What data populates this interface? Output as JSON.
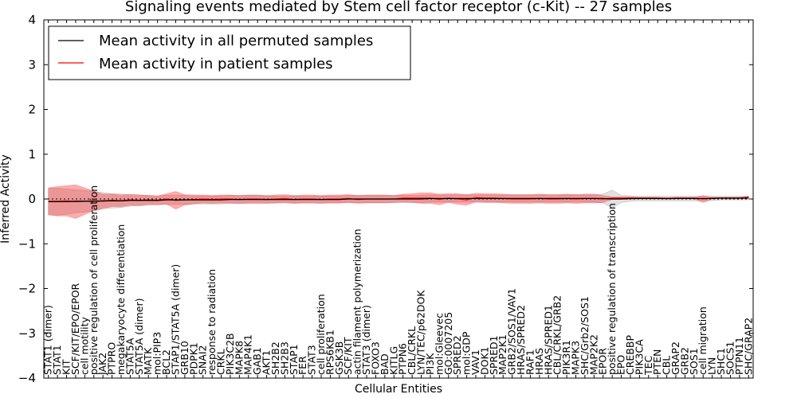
{
  "chart_data": {
    "type": "line",
    "title": "Signaling events mediated by Stem cell factor receptor (c-Kit) -- 27 samples",
    "xlabel": "Cellular Entities",
    "ylabel": "Inferred Activity",
    "ylim": [
      -4,
      4
    ],
    "yticks": [
      -4,
      -3,
      -2,
      -1,
      0,
      1,
      2,
      3,
      4
    ],
    "ytick_labels": [
      "−4",
      "−3",
      "−2",
      "−1",
      "0",
      "1",
      "2",
      "3",
      "4"
    ],
    "grid": false,
    "legend_position": "top-left",
    "categories": [
      "STAT1 (dimer)",
      "STAT1",
      "KIT",
      "SCF/KIT/EPO/EPOR",
      "cell motility",
      "positive regulation of cell proliferation",
      "JAK2",
      "PTPRO",
      "megakaryocyte differentiation",
      "STAT5A",
      "STAT5A (dimer)",
      "MATK",
      "mol:PIP3",
      "BCL2",
      "STAP1/STAT5A (dimer)",
      "GRB10",
      "PDPK1",
      "SNAI2",
      "response to radiation",
      "CRKL",
      "PIK3C2B",
      "MAPK8",
      "MAP4K1",
      "GAB1",
      "AKT1",
      "SH2B2",
      "SH2B3",
      "STAP1",
      "FER",
      "STAT3",
      "cell proliferation",
      "RPS6KB1",
      "GSK3B",
      "SCF/KIT",
      "actin filament polymerization",
      "STAT3 (dimer)",
      "FOXO3",
      "BAD",
      "KITLG",
      "PTPN6",
      "CBL/CRKL",
      "LYN/TEC/p62DOK",
      "PI3K",
      "mol:Gleevec",
      "GO:0007205",
      "SPRED2",
      "mol:GDP",
      "VAV1",
      "DOK1",
      "SPRED1",
      "MAP2K1",
      "GRB2/SOS1/VAV1",
      "HRAS/SPRED2",
      "RAF1",
      "HRAS",
      "HRAS/SPRED1",
      "CBL/CRKL/GRB2",
      "PIK3R1",
      "MAPK3",
      "SHC/Grb2/SOS1",
      "MAP2K2",
      "EPOR",
      "positive regulation of transcription",
      "EPO",
      "CREBBP",
      "PIK3CA",
      "TEC",
      "PTEN",
      "CBL",
      "GRAP2",
      "GRB2",
      "SOS1",
      "cell migration",
      "LYN",
      "SHC1",
      "SOCS1",
      "PTPN11",
      "SHC/GRAP2"
    ],
    "series": [
      {
        "name": "Mean activity in all permuted samples",
        "color": "#000000",
        "values": [
          -0.06,
          -0.06,
          -0.06,
          -0.05,
          -0.05,
          -0.05,
          -0.04,
          -0.04,
          -0.04,
          -0.03,
          -0.03,
          -0.03,
          -0.03,
          -0.02,
          -0.02,
          -0.02,
          -0.02,
          -0.02,
          -0.02,
          -0.02,
          -0.01,
          -0.01,
          -0.01,
          -0.01,
          -0.01,
          -0.01,
          -0.01,
          -0.01,
          -0.01,
          -0.01,
          -0.01,
          -0.01,
          -0.01,
          0.0,
          0.0,
          0.0,
          0.0,
          0.0,
          0.0,
          0.0,
          0.0,
          0.0,
          0.01,
          0.01,
          0.01,
          0.01,
          0.01,
          0.01,
          0.01,
          0.01,
          0.01,
          0.01,
          0.01,
          0.01,
          0.01,
          0.01,
          0.01,
          0.01,
          0.01,
          0.01,
          0.01,
          0.01,
          0.0,
          0.0,
          0.01,
          0.01,
          0.01,
          0.01,
          0.01,
          0.01,
          0.01,
          0.01,
          0.01,
          0.01,
          0.02,
          0.02,
          0.02,
          0.02
        ],
        "band": [
          0.3,
          0.3,
          0.28,
          0.26,
          0.24,
          0.22,
          0.18,
          0.16,
          0.15,
          0.13,
          0.12,
          0.11,
          0.1,
          0.1,
          0.1,
          0.1,
          0.09,
          0.09,
          0.09,
          0.09,
          0.09,
          0.09,
          0.09,
          0.09,
          0.08,
          0.08,
          0.08,
          0.08,
          0.08,
          0.08,
          0.08,
          0.08,
          0.08,
          0.08,
          0.08,
          0.08,
          0.08,
          0.08,
          0.08,
          0.08,
          0.08,
          0.08,
          0.08,
          0.08,
          0.08,
          0.08,
          0.08,
          0.08,
          0.08,
          0.08,
          0.08,
          0.08,
          0.08,
          0.08,
          0.08,
          0.08,
          0.08,
          0.08,
          0.08,
          0.08,
          0.08,
          0.1,
          0.2,
          0.08,
          0.06,
          0.05,
          0.05,
          0.05,
          0.05,
          0.05,
          0.05,
          0.05,
          0.05,
          0.05,
          0.04,
          0.04,
          0.04,
          0.04
        ]
      },
      {
        "name": "Mean activity in patient samples",
        "color": "#ff0000",
        "values": [
          -0.05,
          -0.05,
          -0.04,
          -0.06,
          -0.05,
          -0.04,
          -0.05,
          -0.03,
          -0.04,
          -0.02,
          -0.03,
          -0.02,
          -0.03,
          0.0,
          -0.03,
          -0.02,
          -0.01,
          0.0,
          -0.01,
          0.0,
          0.0,
          -0.01,
          0.0,
          0.0,
          -0.01,
          0.0,
          0.01,
          -0.01,
          0.0,
          0.0,
          -0.01,
          0.0,
          0.0,
          0.01,
          -0.01,
          0.0,
          0.0,
          0.0,
          0.0,
          0.02,
          0.02,
          0.02,
          0.02,
          -0.01,
          0.02,
          0.0,
          -0.02,
          0.03,
          0.02,
          0.02,
          0.01,
          0.0,
          0.0,
          0.0,
          0.01,
          0.0,
          0.0,
          0.01,
          0.0,
          0.01,
          0.01,
          0.0,
          0.02,
          0.02,
          0.02,
          0.02,
          0.02,
          0.02,
          0.01,
          0.02,
          0.02,
          0.02,
          0.0,
          0.02,
          0.02,
          0.02,
          0.02,
          0.04
        ],
        "band": [
          0.3,
          0.33,
          0.34,
          0.38,
          0.3,
          0.22,
          0.16,
          0.14,
          0.13,
          0.12,
          0.12,
          0.1,
          0.1,
          0.12,
          0.2,
          0.12,
          0.1,
          0.09,
          0.09,
          0.09,
          0.09,
          0.09,
          0.09,
          0.09,
          0.09,
          0.09,
          0.09,
          0.09,
          0.09,
          0.09,
          0.09,
          0.09,
          0.09,
          0.09,
          0.09,
          0.09,
          0.09,
          0.09,
          0.08,
          0.09,
          0.1,
          0.12,
          0.12,
          0.12,
          0.1,
          0.12,
          0.12,
          0.1,
          0.1,
          0.1,
          0.1,
          0.1,
          0.1,
          0.1,
          0.1,
          0.1,
          0.1,
          0.1,
          0.1,
          0.1,
          0.1,
          0.08,
          0.03,
          0.03,
          0.03,
          0.02,
          0.02,
          0.02,
          0.02,
          0.02,
          0.02,
          0.02,
          0.08,
          0.02,
          0.02,
          0.02,
          0.02,
          0.03
        ]
      }
    ]
  }
}
